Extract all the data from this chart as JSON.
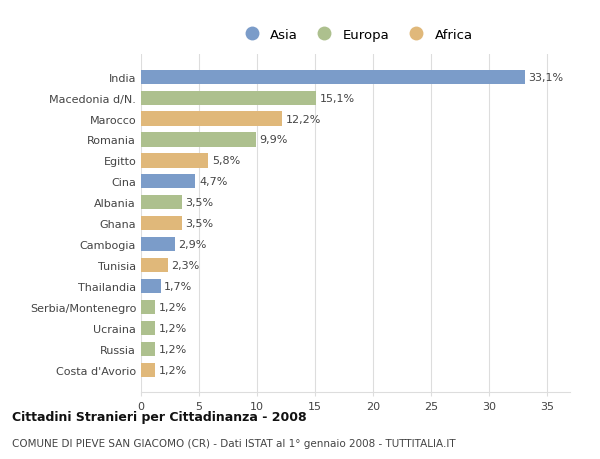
{
  "countries": [
    "India",
    "Macedonia d/N.",
    "Marocco",
    "Romania",
    "Egitto",
    "Cina",
    "Albania",
    "Ghana",
    "Cambogia",
    "Tunisia",
    "Thailandia",
    "Serbia/Montenegro",
    "Ucraina",
    "Russia",
    "Costa d'Avorio"
  ],
  "values": [
    33.1,
    15.1,
    12.2,
    9.9,
    5.8,
    4.7,
    3.5,
    3.5,
    2.9,
    2.3,
    1.7,
    1.2,
    1.2,
    1.2,
    1.2
  ],
  "continents": [
    "Asia",
    "Europa",
    "Africa",
    "Europa",
    "Africa",
    "Asia",
    "Europa",
    "Africa",
    "Asia",
    "Africa",
    "Asia",
    "Europa",
    "Europa",
    "Europa",
    "Africa"
  ],
  "colors": {
    "Asia": "#7b9cc9",
    "Europa": "#adc08e",
    "Africa": "#e0b87a"
  },
  "title": "Cittadini Stranieri per Cittadinanza - 2008",
  "subtitle": "COMUNE DI PIEVE SAN GIACOMO (CR) - Dati ISTAT al 1° gennaio 2008 - TUTTITALIA.IT",
  "xlim": [
    0,
    37
  ],
  "xticks": [
    0,
    5,
    10,
    15,
    20,
    25,
    30,
    35
  ],
  "background_color": "#ffffff",
  "bar_height": 0.68,
  "grid_color": "#dddddd",
  "label_fontsize": 8.0,
  "tick_fontsize": 8.0,
  "legend_fontsize": 9.5
}
